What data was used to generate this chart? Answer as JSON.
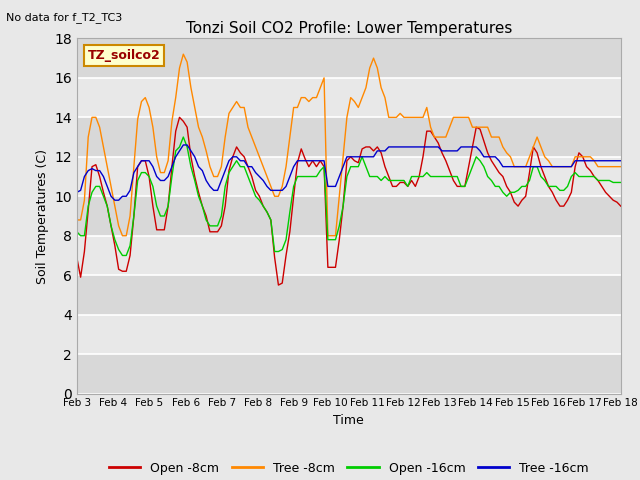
{
  "title": "Tonzi Soil CO2 Profile: Lower Temperatures",
  "subtitle": "No data for f_T2_TC3",
  "xlabel": "Time",
  "ylabel": "Soil Temperatures (C)",
  "legend_title": "TZ_soilco2",
  "ylim": [
    0,
    18
  ],
  "yticks": [
    0,
    2,
    4,
    6,
    8,
    10,
    12,
    14,
    16,
    18
  ],
  "xtick_labels": [
    "Feb 3",
    "Feb 4",
    "Feb 5",
    "Feb 6",
    "Feb 7",
    "Feb 8",
    "Feb 9",
    "Feb 10",
    "Feb 11",
    "Feb 12",
    "Feb 13",
    "Feb 14",
    "Feb 15",
    "Feb 16",
    "Feb 17",
    "Feb 18"
  ],
  "series_colors": {
    "open8": "#cc0000",
    "tree8": "#ff8800",
    "open16": "#00cc00",
    "tree16": "#0000cc"
  },
  "series_labels": [
    "Open -8cm",
    "Tree -8cm",
    "Open -16cm",
    "Tree -16cm"
  ],
  "bg_band_color": "#d8d8d8",
  "bg_white_color": "#e8e8e8",
  "open8": [
    6.9,
    5.9,
    7.2,
    9.3,
    11.5,
    11.6,
    11.0,
    10.2,
    9.5,
    8.5,
    7.5,
    6.3,
    6.2,
    6.2,
    7.0,
    9.0,
    11.5,
    11.8,
    11.8,
    11.0,
    9.5,
    8.3,
    8.3,
    8.3,
    9.5,
    11.5,
    13.3,
    14.0,
    13.8,
    13.5,
    12.0,
    11.0,
    10.2,
    9.5,
    9.0,
    8.2,
    8.2,
    8.2,
    8.5,
    9.5,
    11.3,
    12.0,
    12.5,
    12.2,
    12.0,
    11.5,
    11.0,
    10.3,
    10.0,
    9.5,
    9.2,
    8.8,
    6.9,
    5.5,
    5.6,
    7.0,
    8.2,
    10.0,
    11.7,
    12.4,
    11.9,
    11.5,
    11.8,
    11.5,
    11.8,
    11.5,
    6.4,
    6.4,
    6.4,
    7.8,
    9.5,
    11.8,
    12.0,
    11.8,
    11.7,
    12.4,
    12.5,
    12.5,
    12.3,
    12.5,
    12.2,
    11.5,
    11.0,
    10.5,
    10.5,
    10.7,
    10.7,
    10.5,
    10.8,
    10.5,
    11.0,
    12.0,
    13.3,
    13.3,
    13.0,
    12.7,
    12.2,
    11.8,
    11.3,
    10.8,
    10.5,
    10.5,
    10.5,
    11.5,
    12.5,
    13.5,
    13.4,
    12.8,
    12.2,
    11.8,
    11.5,
    11.2,
    11.0,
    10.5,
    10.2,
    9.7,
    9.5,
    9.8,
    10.0,
    11.2,
    12.5,
    12.2,
    11.5,
    11.0,
    10.5,
    10.2,
    9.8,
    9.5,
    9.5,
    9.8,
    10.2,
    11.5,
    12.2,
    12.0,
    11.5,
    11.3,
    11.0,
    10.8,
    10.5,
    10.2,
    10.0,
    9.8,
    9.7,
    9.5
  ],
  "tree8": [
    8.8,
    8.8,
    9.8,
    13.0,
    14.0,
    14.0,
    13.5,
    12.5,
    11.5,
    10.5,
    9.5,
    8.5,
    8.0,
    8.0,
    9.0,
    11.5,
    13.9,
    14.8,
    15.0,
    14.5,
    13.5,
    12.0,
    11.2,
    11.2,
    11.8,
    13.8,
    15.0,
    16.5,
    17.2,
    16.8,
    15.5,
    14.5,
    13.5,
    13.0,
    12.3,
    11.5,
    11.0,
    11.0,
    11.5,
    13.0,
    14.2,
    14.5,
    14.8,
    14.5,
    14.5,
    13.5,
    13.0,
    12.5,
    12.0,
    11.5,
    11.0,
    10.5,
    10.0,
    10.0,
    10.5,
    11.5,
    13.0,
    14.5,
    14.5,
    15.0,
    15.0,
    14.8,
    15.0,
    15.0,
    15.5,
    16.0,
    8.0,
    8.0,
    8.0,
    10.0,
    12.0,
    14.0,
    15.0,
    14.8,
    14.5,
    15.0,
    15.5,
    16.5,
    17.0,
    16.5,
    15.5,
    15.0,
    14.0,
    14.0,
    14.0,
    14.2,
    14.0,
    14.0,
    14.0,
    14.0,
    14.0,
    14.0,
    14.5,
    13.5,
    13.0,
    13.0,
    13.0,
    13.0,
    13.5,
    14.0,
    14.0,
    14.0,
    14.0,
    14.0,
    13.5,
    13.5,
    13.5,
    13.5,
    13.5,
    13.0,
    13.0,
    13.0,
    12.5,
    12.2,
    12.0,
    11.5,
    11.5,
    11.5,
    11.5,
    12.0,
    12.5,
    13.0,
    12.5,
    12.0,
    11.8,
    11.5,
    11.5,
    11.5,
    11.5,
    11.5,
    11.5,
    12.0,
    12.0,
    12.0,
    12.0,
    12.0,
    11.8,
    11.5,
    11.5,
    11.5,
    11.5,
    11.5,
    11.5,
    11.5
  ],
  "open16": [
    8.2,
    8.0,
    8.0,
    9.5,
    10.2,
    10.5,
    10.5,
    10.0,
    9.5,
    8.5,
    7.8,
    7.3,
    7.0,
    7.0,
    7.5,
    9.0,
    10.8,
    11.2,
    11.2,
    11.0,
    10.5,
    9.5,
    9.0,
    9.0,
    9.5,
    11.0,
    12.3,
    12.5,
    13.0,
    12.5,
    11.5,
    10.8,
    10.0,
    9.5,
    8.8,
    8.5,
    8.5,
    8.5,
    9.0,
    10.5,
    11.2,
    11.5,
    11.8,
    11.5,
    11.5,
    11.0,
    10.5,
    10.0,
    9.8,
    9.5,
    9.2,
    8.8,
    7.2,
    7.2,
    7.3,
    7.8,
    9.2,
    10.5,
    11.0,
    11.0,
    11.0,
    11.0,
    11.0,
    11.0,
    11.3,
    11.5,
    7.8,
    7.8,
    7.8,
    8.5,
    9.5,
    11.0,
    11.5,
    11.5,
    11.5,
    12.0,
    11.5,
    11.0,
    11.0,
    11.0,
    10.8,
    11.0,
    10.8,
    10.8,
    10.8,
    10.8,
    10.8,
    10.5,
    11.0,
    11.0,
    11.0,
    11.0,
    11.2,
    11.0,
    11.0,
    11.0,
    11.0,
    11.0,
    11.0,
    11.0,
    11.0,
    10.5,
    10.5,
    11.0,
    11.5,
    12.0,
    11.8,
    11.5,
    11.0,
    10.8,
    10.5,
    10.5,
    10.2,
    10.0,
    10.2,
    10.2,
    10.3,
    10.5,
    10.5,
    10.8,
    11.5,
    11.5,
    11.0,
    10.8,
    10.5,
    10.5,
    10.5,
    10.3,
    10.3,
    10.5,
    11.0,
    11.2,
    11.0,
    11.0,
    11.0,
    11.0,
    11.0,
    10.8,
    10.8,
    10.8,
    10.8,
    10.7,
    10.7,
    10.7
  ],
  "tree16": [
    10.2,
    10.3,
    11.0,
    11.3,
    11.4,
    11.3,
    11.3,
    11.0,
    10.5,
    10.0,
    9.8,
    9.8,
    10.0,
    10.0,
    10.3,
    11.2,
    11.5,
    11.8,
    11.8,
    11.8,
    11.5,
    11.0,
    10.8,
    10.8,
    11.0,
    11.5,
    12.0,
    12.3,
    12.6,
    12.6,
    12.3,
    12.0,
    11.5,
    11.3,
    10.8,
    10.5,
    10.3,
    10.3,
    10.8,
    11.3,
    11.8,
    12.0,
    12.0,
    11.8,
    11.8,
    11.5,
    11.5,
    11.2,
    11.0,
    10.8,
    10.5,
    10.3,
    10.3,
    10.3,
    10.3,
    10.5,
    11.0,
    11.5,
    11.8,
    11.8,
    11.8,
    11.8,
    11.8,
    11.8,
    11.8,
    11.8,
    10.5,
    10.5,
    10.5,
    11.0,
    11.5,
    12.0,
    12.0,
    12.0,
    12.0,
    12.0,
    12.0,
    12.0,
    12.0,
    12.3,
    12.3,
    12.3,
    12.5,
    12.5,
    12.5,
    12.5,
    12.5,
    12.5,
    12.5,
    12.5,
    12.5,
    12.5,
    12.5,
    12.5,
    12.5,
    12.5,
    12.3,
    12.3,
    12.3,
    12.3,
    12.3,
    12.5,
    12.5,
    12.5,
    12.5,
    12.5,
    12.3,
    12.0,
    12.0,
    12.0,
    12.0,
    11.8,
    11.5,
    11.5,
    11.5,
    11.5,
    11.5,
    11.5,
    11.5,
    11.5,
    11.5,
    11.5,
    11.5,
    11.5,
    11.5,
    11.5,
    11.5,
    11.5,
    11.5,
    11.5,
    11.5,
    11.8,
    11.8,
    11.8,
    11.8,
    11.8,
    11.8,
    11.8,
    11.8,
    11.8,
    11.8,
    11.8,
    11.8,
    11.8
  ]
}
